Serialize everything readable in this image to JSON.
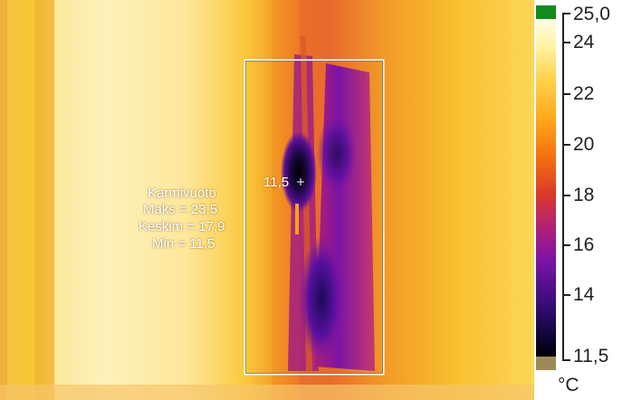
{
  "roi": {
    "name": "Karmivuoto",
    "max": "Maks = 23,5",
    "mean": "Keskim = 17,9",
    "min": "Min = 11,5",
    "spot_label": "11,5"
  },
  "scale": {
    "max_label": "25,0",
    "min_label": "11,5",
    "ticks": [
      "24",
      "22",
      "20",
      "18",
      "16",
      "14"
    ],
    "unit": "°C"
  },
  "colors": {
    "palette": "ironbow",
    "above_range": "#118a1e",
    "below_range": "#9e8a59"
  }
}
